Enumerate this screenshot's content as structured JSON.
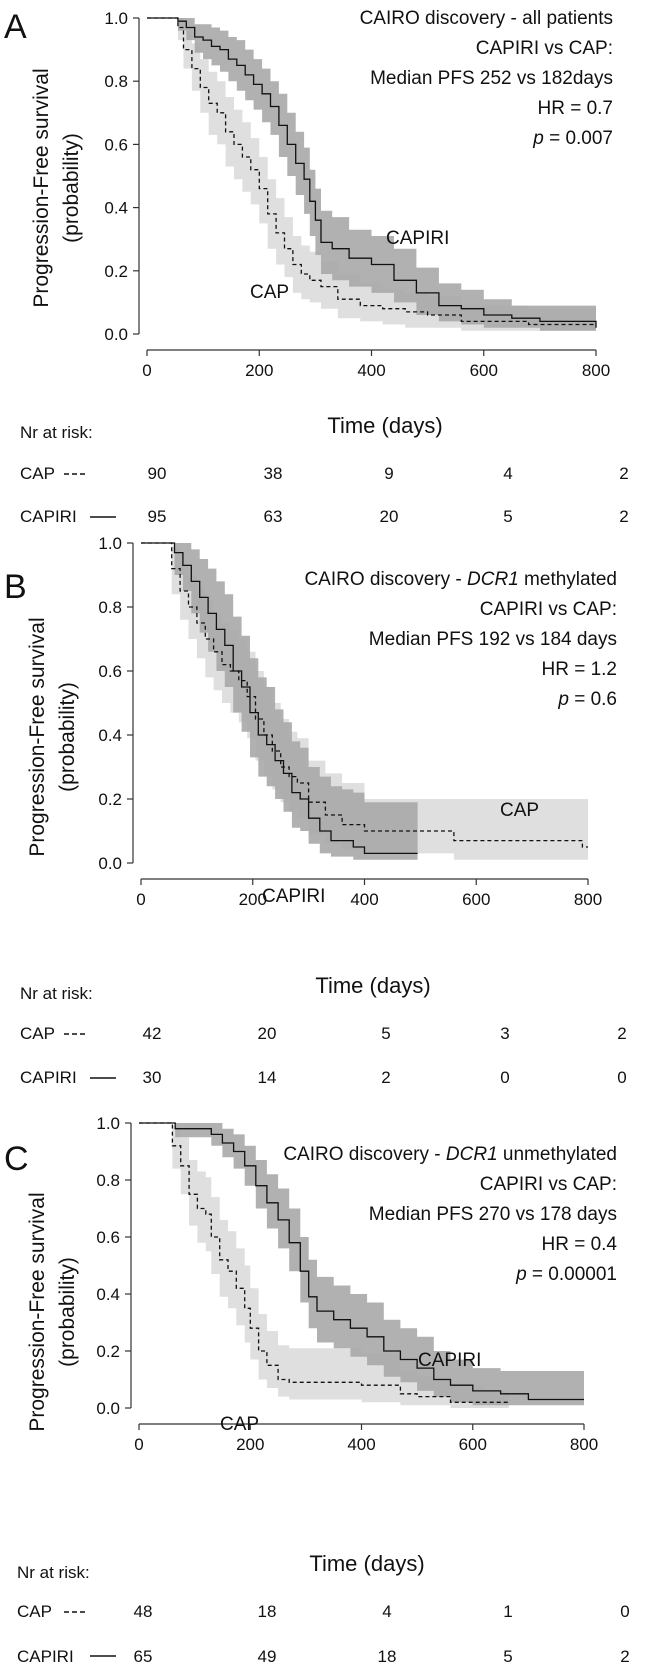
{
  "figure": {
    "y_label_line1": "Progression-Free survival",
    "y_label_line2": "(probability)",
    "x_label": "Time (days)",
    "risk_header": "Nr at risk:"
  },
  "panels": [
    {
      "letter": "A",
      "annotation": [
        "CAIRO discovery - all patients",
        "CAPIRI vs CAP:",
        "Median PFS 252 vs 182days",
        "HR = 0.7",
        "p = 0.007"
      ],
      "curve_labels": {
        "CAPIRI": "CAPIRI",
        "CAP": "CAP"
      },
      "risk_table": {
        "times": [
          0,
          200,
          400,
          600,
          800
        ],
        "rows": [
          {
            "label": "CAP",
            "style": "dashed",
            "values": [
              90,
              38,
              9,
              4,
              2
            ]
          },
          {
            "label": "CAPIRI",
            "style": "solid",
            "values": [
              95,
              63,
              20,
              5,
              2
            ]
          }
        ]
      }
    },
    {
      "letter": "B",
      "annotation": [
        "CAIRO discovery - DCR1 methylated",
        "CAPIRI vs CAP:",
        "Median PFS 192 vs 184 days",
        "HR = 1.2",
        "p = 0.6"
      ],
      "curve_labels": {
        "CAPIRI": "CAPIRI",
        "CAP": "CAP"
      },
      "risk_table": {
        "times": [
          0,
          200,
          400,
          600,
          800
        ],
        "rows": [
          {
            "label": "CAP",
            "style": "dashed",
            "values": [
              42,
              20,
              5,
              3,
              2
            ]
          },
          {
            "label": "CAPIRI",
            "style": "solid",
            "values": [
              30,
              14,
              2,
              0,
              0
            ]
          }
        ]
      }
    },
    {
      "letter": "C",
      "annotation": [
        "CAIRO discovery - DCR1 unmethylated",
        "CAPIRI vs CAP:",
        "Median PFS 270 vs 178 days",
        "HR = 0.4",
        "p = 0.00001"
      ],
      "curve_labels": {
        "CAPIRI": "CAPIRI",
        "CAP": "CAP"
      },
      "risk_table": {
        "times": [
          0,
          200,
          400,
          600,
          800
        ],
        "rows": [
          {
            "label": "CAP",
            "style": "dashed",
            "values": [
              48,
              18,
              4,
              1,
              0
            ]
          },
          {
            "label": "CAPIRI",
            "style": "solid",
            "values": [
              65,
              49,
              18,
              5,
              2
            ]
          }
        ]
      }
    }
  ],
  "chart_data": [
    {
      "type": "line",
      "title": "CAIRO discovery - all patients",
      "xlabel": "Time (days)",
      "ylabel": "Progression-Free survival (probability)",
      "xlim": [
        0,
        800
      ],
      "ylim": [
        0,
        1
      ],
      "xticks": [
        "0",
        "200",
        "400",
        "600",
        "800"
      ],
      "yticks": [
        "0.0",
        "0.2",
        "0.4",
        "0.6",
        "0.8",
        "1.0"
      ],
      "series": [
        {
          "name": "CAPIRI",
          "style": "solid",
          "band_color": "#a9a9a9",
          "x": [
            0,
            40,
            55,
            70,
            85,
            100,
            115,
            130,
            145,
            160,
            175,
            190,
            205,
            220,
            235,
            250,
            265,
            280,
            290,
            300,
            310,
            330,
            360,
            400,
            440,
            480,
            520,
            560,
            600,
            650,
            700,
            800
          ],
          "y": [
            1.0,
            1.0,
            0.99,
            0.97,
            0.94,
            0.93,
            0.91,
            0.9,
            0.87,
            0.85,
            0.82,
            0.79,
            0.76,
            0.72,
            0.66,
            0.6,
            0.54,
            0.49,
            0.42,
            0.36,
            0.29,
            0.27,
            0.24,
            0.22,
            0.17,
            0.13,
            0.09,
            0.08,
            0.06,
            0.05,
            0.04,
            0.02
          ],
          "lower": [
            1.0,
            1.0,
            0.96,
            0.93,
            0.89,
            0.87,
            0.85,
            0.83,
            0.8,
            0.77,
            0.74,
            0.71,
            0.67,
            0.63,
            0.56,
            0.5,
            0.44,
            0.38,
            0.31,
            0.25,
            0.19,
            0.17,
            0.15,
            0.13,
            0.1,
            0.06,
            0.04,
            0.03,
            0.02,
            0.02,
            0.01,
            0.01
          ],
          "upper": [
            1.0,
            1.0,
            1.0,
            1.0,
            0.98,
            0.98,
            0.97,
            0.96,
            0.94,
            0.93,
            0.9,
            0.87,
            0.84,
            0.8,
            0.76,
            0.7,
            0.64,
            0.59,
            0.52,
            0.46,
            0.39,
            0.37,
            0.33,
            0.31,
            0.27,
            0.21,
            0.16,
            0.14,
            0.11,
            0.09,
            0.09,
            0.09
          ]
        },
        {
          "name": "CAP",
          "style": "dashed",
          "band_color": "#dcdcdc",
          "x": [
            0,
            40,
            55,
            65,
            80,
            95,
            110,
            125,
            140,
            155,
            170,
            185,
            200,
            215,
            230,
            245,
            260,
            275,
            290,
            310,
            340,
            380,
            420,
            460,
            500,
            560,
            620,
            680,
            800
          ],
          "y": [
            1.0,
            1.0,
            0.97,
            0.9,
            0.84,
            0.78,
            0.73,
            0.7,
            0.64,
            0.6,
            0.56,
            0.52,
            0.46,
            0.38,
            0.32,
            0.27,
            0.22,
            0.19,
            0.17,
            0.15,
            0.11,
            0.09,
            0.08,
            0.07,
            0.06,
            0.04,
            0.04,
            0.03,
            0.03
          ],
          "lower": [
            1.0,
            1.0,
            0.93,
            0.84,
            0.77,
            0.7,
            0.63,
            0.6,
            0.53,
            0.49,
            0.45,
            0.41,
            0.35,
            0.27,
            0.22,
            0.18,
            0.13,
            0.11,
            0.1,
            0.08,
            0.05,
            0.04,
            0.03,
            0.02,
            0.02,
            0.01,
            0.01,
            0.01,
            0.01
          ],
          "upper": [
            1.0,
            1.0,
            1.0,
            0.96,
            0.92,
            0.87,
            0.83,
            0.8,
            0.75,
            0.71,
            0.67,
            0.62,
            0.56,
            0.49,
            0.43,
            0.37,
            0.31,
            0.28,
            0.26,
            0.23,
            0.19,
            0.16,
            0.14,
            0.13,
            0.12,
            0.09,
            0.09,
            0.08,
            0.08
          ]
        }
      ],
      "annotations": [
        "CAIRO discovery - all patients",
        "CAPIRI vs CAP:",
        "Median PFS 252 vs 182days",
        "HR = 0.7",
        "p = 0.007"
      ]
    },
    {
      "type": "line",
      "title": "CAIRO discovery - DCR1 methylated",
      "xlabel": "Time (days)",
      "ylabel": "Progression-Free survival (probability)",
      "xlim": [
        0,
        800
      ],
      "ylim": [
        0,
        1
      ],
      "xticks": [
        "0",
        "200",
        "400",
        "600",
        "800"
      ],
      "yticks": [
        "0.0",
        "0.2",
        "0.4",
        "0.6",
        "0.8",
        "1.0"
      ],
      "series": [
        {
          "name": "CAPIRI",
          "style": "solid",
          "band_color": "#a9a9a9",
          "x": [
            0,
            50,
            60,
            75,
            90,
            105,
            120,
            135,
            150,
            165,
            180,
            195,
            210,
            225,
            240,
            255,
            270,
            285,
            300,
            320,
            340,
            360,
            380,
            400,
            440,
            495
          ],
          "y": [
            1.0,
            1.0,
            0.97,
            0.93,
            0.88,
            0.83,
            0.78,
            0.73,
            0.68,
            0.6,
            0.55,
            0.47,
            0.4,
            0.37,
            0.32,
            0.28,
            0.22,
            0.2,
            0.14,
            0.1,
            0.07,
            0.07,
            0.05,
            0.03,
            0.03,
            0.03
          ],
          "lower": [
            1.0,
            1.0,
            0.9,
            0.85,
            0.78,
            0.72,
            0.66,
            0.6,
            0.55,
            0.47,
            0.41,
            0.33,
            0.27,
            0.24,
            0.2,
            0.16,
            0.11,
            0.1,
            0.06,
            0.03,
            0.02,
            0.02,
            0.01,
            0.01,
            0.01,
            0.01
          ],
          "upper": [
            1.0,
            1.0,
            1.0,
            1.0,
            0.98,
            0.95,
            0.92,
            0.88,
            0.84,
            0.77,
            0.71,
            0.64,
            0.58,
            0.55,
            0.48,
            0.44,
            0.38,
            0.36,
            0.3,
            0.27,
            0.24,
            0.23,
            0.22,
            0.19,
            0.19,
            0.19
          ]
        },
        {
          "name": "CAP",
          "style": "dashed",
          "band_color": "#dcdcdc",
          "x": [
            0,
            40,
            55,
            70,
            85,
            100,
            115,
            130,
            145,
            160,
            175,
            190,
            205,
            220,
            235,
            250,
            265,
            280,
            300,
            330,
            360,
            400,
            500,
            560,
            700,
            790,
            800
          ],
          "y": [
            1.0,
            1.0,
            0.92,
            0.85,
            0.8,
            0.75,
            0.7,
            0.66,
            0.62,
            0.6,
            0.57,
            0.52,
            0.45,
            0.4,
            0.35,
            0.3,
            0.27,
            0.25,
            0.19,
            0.15,
            0.12,
            0.1,
            0.1,
            0.07,
            0.07,
            0.05,
            0.05
          ],
          "lower": [
            1.0,
            1.0,
            0.84,
            0.76,
            0.7,
            0.64,
            0.58,
            0.54,
            0.5,
            0.47,
            0.44,
            0.39,
            0.32,
            0.27,
            0.23,
            0.19,
            0.16,
            0.14,
            0.09,
            0.06,
            0.04,
            0.03,
            0.03,
            0.01,
            0.01,
            0.01,
            0.01
          ],
          "upper": [
            1.0,
            1.0,
            0.99,
            0.94,
            0.9,
            0.86,
            0.82,
            0.78,
            0.75,
            0.73,
            0.7,
            0.66,
            0.6,
            0.55,
            0.5,
            0.45,
            0.41,
            0.39,
            0.32,
            0.28,
            0.25,
            0.2,
            0.2,
            0.2,
            0.2,
            0.2,
            0.2
          ]
        }
      ],
      "annotations": [
        "CAIRO discovery - DCR1 methylated",
        "CAPIRI vs CAP:",
        "Median PFS 192 vs 184 days",
        "HR = 1.2",
        "p = 0.6"
      ]
    },
    {
      "type": "line",
      "title": "CAIRO discovery - DCR1 unmethylated",
      "xlabel": "Time (days)",
      "ylabel": "Progression-Free survival (probability)",
      "xlim": [
        0,
        800
      ],
      "ylim": [
        0,
        1
      ],
      "xticks": [
        "0",
        "200",
        "400",
        "600",
        "800"
      ],
      "yticks": [
        "0.0",
        "0.2",
        "0.4",
        "0.6",
        "0.8",
        "1.0"
      ],
      "series": [
        {
          "name": "CAPIRI",
          "style": "solid",
          "band_color": "#a9a9a9",
          "x": [
            0,
            55,
            65,
            120,
            130,
            150,
            170,
            190,
            210,
            230,
            250,
            270,
            290,
            305,
            320,
            350,
            380,
            410,
            440,
            470,
            500,
            530,
            560,
            600,
            650,
            700,
            800
          ],
          "y": [
            1.0,
            1.0,
            0.98,
            0.98,
            0.96,
            0.93,
            0.9,
            0.85,
            0.78,
            0.72,
            0.66,
            0.58,
            0.48,
            0.39,
            0.34,
            0.31,
            0.28,
            0.25,
            0.2,
            0.17,
            0.14,
            0.1,
            0.08,
            0.06,
            0.05,
            0.03,
            0.03
          ],
          "lower": [
            1.0,
            1.0,
            0.95,
            0.95,
            0.92,
            0.88,
            0.84,
            0.78,
            0.7,
            0.63,
            0.56,
            0.48,
            0.37,
            0.28,
            0.23,
            0.21,
            0.18,
            0.15,
            0.11,
            0.09,
            0.06,
            0.04,
            0.02,
            0.01,
            0.01,
            0.01,
            0.01
          ],
          "upper": [
            1.0,
            1.0,
            1.0,
            1.0,
            1.0,
            0.98,
            0.96,
            0.92,
            0.87,
            0.82,
            0.77,
            0.7,
            0.6,
            0.52,
            0.46,
            0.43,
            0.4,
            0.37,
            0.31,
            0.28,
            0.25,
            0.2,
            0.17,
            0.14,
            0.13,
            0.13,
            0.13
          ]
        },
        {
          "name": "CAP",
          "style": "dashed",
          "band_color": "#dcdcdc",
          "x": [
            0,
            50,
            60,
            75,
            90,
            105,
            120,
            130,
            145,
            160,
            175,
            190,
            200,
            215,
            230,
            250,
            270,
            300,
            350,
            400,
            470,
            500,
            560,
            620,
            665
          ],
          "y": [
            1.0,
            1.0,
            0.92,
            0.85,
            0.75,
            0.7,
            0.68,
            0.6,
            0.52,
            0.48,
            0.42,
            0.35,
            0.28,
            0.2,
            0.15,
            0.1,
            0.09,
            0.09,
            0.09,
            0.08,
            0.05,
            0.04,
            0.02,
            0.02,
            0.02
          ],
          "lower": [
            1.0,
            1.0,
            0.84,
            0.75,
            0.64,
            0.58,
            0.55,
            0.47,
            0.39,
            0.35,
            0.29,
            0.23,
            0.17,
            0.1,
            0.07,
            0.04,
            0.03,
            0.03,
            0.03,
            0.02,
            0.01,
            0.01,
            0.0,
            0.0,
            0.0
          ],
          "upper": [
            1.0,
            1.0,
            0.99,
            0.95,
            0.87,
            0.83,
            0.81,
            0.74,
            0.66,
            0.62,
            0.56,
            0.5,
            0.42,
            0.33,
            0.27,
            0.22,
            0.21,
            0.21,
            0.21,
            0.19,
            0.13,
            0.11,
            0.08,
            0.06,
            0.06
          ]
        }
      ],
      "annotations": [
        "CAIRO discovery - DCR1 unmethylated",
        "CAPIRI vs CAP:",
        "Median PFS 270 vs 178 days",
        "HR = 0.4",
        "p = 0.00001"
      ]
    }
  ]
}
